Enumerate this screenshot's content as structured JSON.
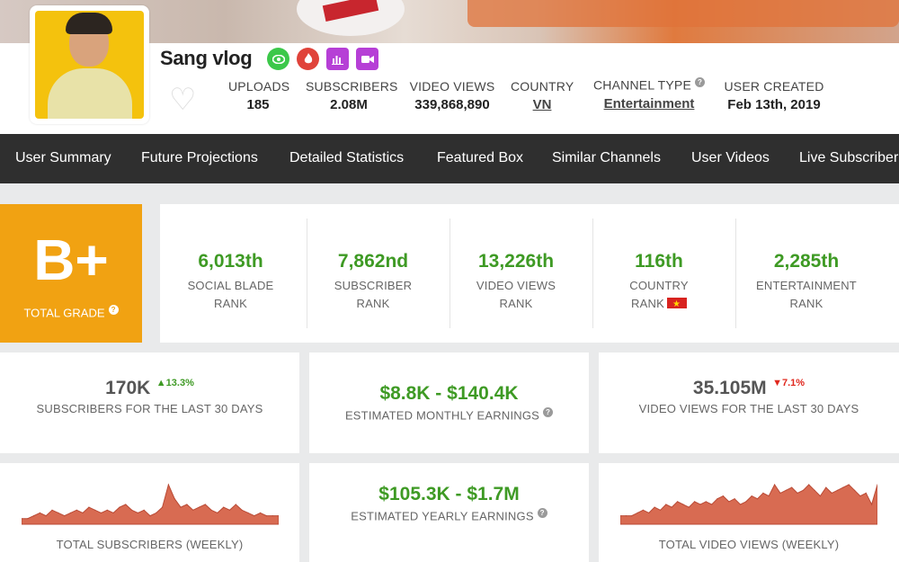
{
  "channel": {
    "name": "Sang vlog",
    "badges": [
      {
        "icon": "eye-icon",
        "color": "#3cc84a"
      },
      {
        "icon": "flame-icon",
        "color": "#e0433a"
      },
      {
        "icon": "bar-chart-icon",
        "color": "#b63fd6"
      },
      {
        "icon": "video-camera-icon",
        "color": "#b63fd6"
      }
    ]
  },
  "stats": {
    "uploads_label": "UPLOADS",
    "uploads": "185",
    "subscribers_label": "SUBSCRIBERS",
    "subscribers": "2.08M",
    "views_label": "VIDEO VIEWS",
    "views": "339,868,890",
    "country_label": "COUNTRY",
    "country": "VN",
    "type_label": "CHANNEL TYPE",
    "type": "Entertainment",
    "created_label": "USER CREATED",
    "created": "Feb 13th, 2019"
  },
  "nav": [
    "User Summary",
    "Future Projections",
    "Detailed Statistics",
    "Featured Box",
    "Similar Channels",
    "User Videos",
    "Live Subscriber"
  ],
  "grade": {
    "letter": "B+",
    "label": "TOTAL GRADE",
    "color": "#f1a212"
  },
  "ranks": [
    {
      "value": "6,013th",
      "line1": "SOCIAL BLADE",
      "line2": "RANK"
    },
    {
      "value": "7,862nd",
      "line1": "SUBSCRIBER",
      "line2": "RANK"
    },
    {
      "value": "13,226th",
      "line1": "VIDEO VIEWS",
      "line2": "RANK"
    },
    {
      "value": "116th",
      "line1": "COUNTRY",
      "line2": "RANK"
    },
    {
      "value": "2,285th",
      "line1": "ENTERTAINMENT",
      "line2": "RANK"
    }
  ],
  "cards": {
    "subs30": {
      "value": "170K",
      "delta": "13.3%",
      "label": "SUBSCRIBERS FOR THE LAST 30 DAYS"
    },
    "monthly": {
      "value": "$8.8K - $140.4K",
      "label": "ESTIMATED MONTHLY EARNINGS"
    },
    "views30": {
      "value": "35.105M",
      "delta": "7.1%",
      "label": "VIDEO VIEWS FOR THE LAST 30 DAYS"
    },
    "subs_weekly": {
      "label": "TOTAL SUBSCRIBERS (WEEKLY)"
    },
    "yearly": {
      "value": "$105.3K - $1.7M",
      "label": "ESTIMATED YEARLY EARNINGS"
    },
    "views_weekly": {
      "label": "TOTAL VIDEO VIEWS (WEEKLY)"
    }
  },
  "colors": {
    "green": "#3e9a24",
    "red": "#e0281e",
    "orange": "#f1a212",
    "spark": "#d86b52",
    "nav_bg": "#2f2f2f"
  },
  "chart_data": [
    {
      "type": "area",
      "title": "",
      "values": [
        2,
        2,
        3,
        4,
        3,
        5,
        4,
        3,
        4,
        5,
        4,
        6,
        5,
        4,
        5,
        4,
        6,
        7,
        5,
        4,
        5,
        3,
        4,
        6,
        14,
        9,
        6,
        7,
        5,
        6,
        7,
        5,
        4,
        6,
        5,
        7,
        5,
        4,
        3,
        4,
        3,
        3,
        3
      ]
    },
    {
      "type": "area",
      "title": "",
      "values": [
        3,
        3,
        3,
        4,
        5,
        4,
        6,
        5,
        7,
        6,
        8,
        7,
        6,
        8,
        7,
        8,
        7,
        9,
        10,
        8,
        9,
        7,
        8,
        10,
        9,
        11,
        10,
        14,
        11,
        12,
        13,
        11,
        12,
        14,
        12,
        10,
        13,
        11,
        12,
        13,
        14,
        12,
        10,
        11,
        7,
        14
      ]
    }
  ]
}
